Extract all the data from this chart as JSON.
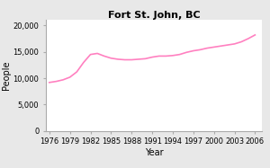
{
  "title": "Fort St. John, BC",
  "xlabel": "Year",
  "ylabel": "People",
  "line_color": "#FF80C0",
  "background_color": "#e8e8e8",
  "plot_bg_color": "#ffffff",
  "years": [
    1976,
    1977,
    1978,
    1979,
    1980,
    1981,
    1982,
    1983,
    1984,
    1985,
    1986,
    1987,
    1988,
    1989,
    1990,
    1991,
    1992,
    1993,
    1994,
    1995,
    1996,
    1997,
    1998,
    1999,
    2000,
    2001,
    2002,
    2003,
    2004,
    2005,
    2006
  ],
  "population": [
    9200,
    9400,
    9700,
    10200,
    11200,
    13000,
    14500,
    14700,
    14200,
    13800,
    13600,
    13500,
    13500,
    13600,
    13700,
    14000,
    14200,
    14200,
    14300,
    14500,
    14900,
    15200,
    15400,
    15700,
    15900,
    16100,
    16300,
    16500,
    16900,
    17500,
    18200
  ],
  "xticks": [
    1976,
    1979,
    1982,
    1985,
    1988,
    1991,
    1994,
    1997,
    2000,
    2003,
    2006
  ],
  "yticks": [
    0,
    5000,
    10000,
    15000,
    20000
  ],
  "ylim": [
    0,
    21000
  ],
  "xlim": [
    1975.5,
    2007
  ],
  "title_fontsize": 8,
  "axis_label_fontsize": 7,
  "tick_fontsize": 6,
  "linewidth": 1.2
}
